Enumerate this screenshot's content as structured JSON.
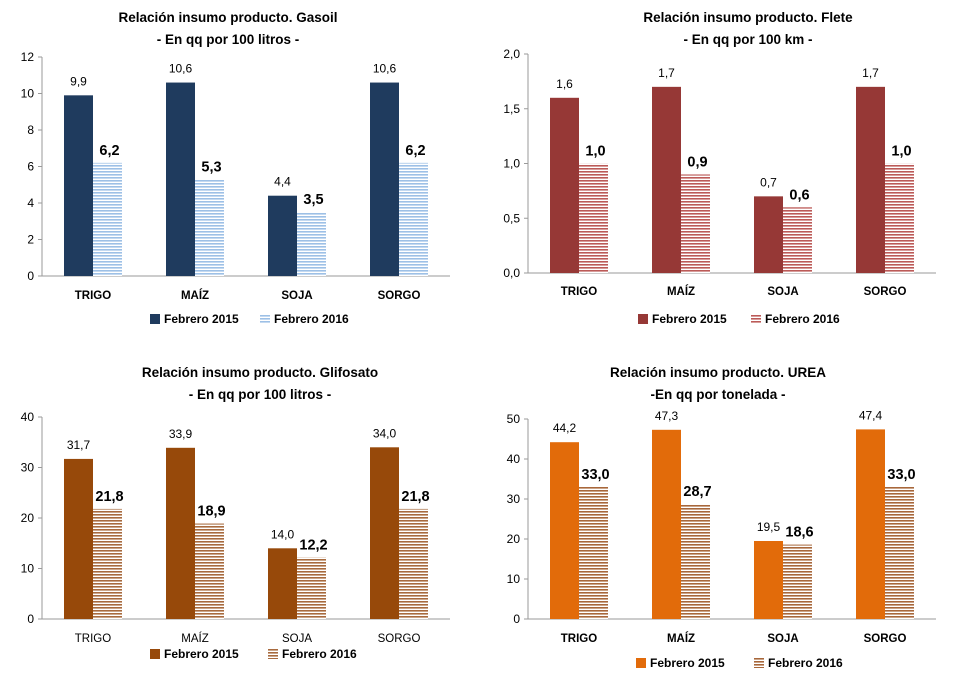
{
  "chart_data": [
    {
      "type": "bar",
      "title": "Relación insumo producto. Gasoil",
      "subtitle": "- En qq por 100 litros -",
      "categories": [
        "TRIGO",
        "MAÍZ",
        "SOJA",
        "SORGO"
      ],
      "series": [
        {
          "name": "Febrero 2015",
          "values": [
            9.9,
            10.6,
            4.4,
            10.6
          ],
          "labels": [
            "9,9",
            "10,6",
            "4,4",
            "10,6"
          ],
          "color": "#1f3b5e"
        },
        {
          "name": "Febrero 2016",
          "values": [
            6.2,
            5.3,
            3.5,
            6.2
          ],
          "labels": [
            "6,2",
            "5,3",
            "3,5",
            "6,2"
          ],
          "color": "#9dc0e6",
          "pattern": "horizontal-stripes"
        }
      ],
      "ylim": [
        0,
        12
      ],
      "yticks": [
        "0",
        "2",
        "4",
        "6",
        "8",
        "10",
        "12"
      ],
      "yticks_values": [
        0,
        2,
        4,
        6,
        8,
        10,
        12
      ],
      "legend_position": "bottom",
      "grid": false,
      "bold_categories": true
    },
    {
      "type": "bar",
      "title": "Relación insumo producto. Flete",
      "subtitle": "- En qq por 100 km -",
      "categories": [
        "TRIGO",
        "MAÍZ",
        "SOJA",
        "SORGO"
      ],
      "series": [
        {
          "name": "Febrero 2015",
          "values": [
            1.6,
            1.7,
            0.7,
            1.7
          ],
          "labels": [
            "1,6",
            "1,7",
            "0,7",
            "1,7"
          ],
          "color": "#963836"
        },
        {
          "name": "Febrero 2016",
          "values": [
            1.0,
            0.9,
            0.6,
            1.0
          ],
          "labels": [
            "1,0",
            "0,9",
            "0,6",
            "1,0"
          ],
          "color": "#bc5a58",
          "pattern": "horizontal-stripes"
        }
      ],
      "ylim": [
        0,
        2
      ],
      "yticks": [
        "0,0",
        "0,5",
        "1,0",
        "1,5",
        "2,0"
      ],
      "yticks_values": [
        0,
        0.5,
        1,
        1.5,
        2
      ],
      "legend_position": "bottom",
      "grid": false,
      "bold_categories": true
    },
    {
      "type": "bar",
      "title": "Relación insumo producto. Glifosato",
      "subtitle": "- En qq por 100 litros -",
      "categories": [
        "TRIGO",
        "MAÍZ",
        "SOJA",
        "SORGO"
      ],
      "series": [
        {
          "name": "Febrero 2015",
          "values": [
            31.7,
            33.9,
            14.0,
            34.0
          ],
          "labels": [
            "31,7",
            "33,9",
            "14,0",
            "34,0"
          ],
          "color": "#97490a"
        },
        {
          "name": "Febrero 2016",
          "values": [
            21.8,
            18.9,
            12.2,
            21.8
          ],
          "labels": [
            "21,8",
            "18,9",
            "12,2",
            "21,8"
          ],
          "color": "#a86a3e",
          "pattern": "horizontal-stripes"
        }
      ],
      "ylim": [
        0,
        40
      ],
      "yticks": [
        "0",
        "10",
        "20",
        "30",
        "40"
      ],
      "yticks_values": [
        0,
        10,
        20,
        30,
        40
      ],
      "legend_position": "bottom",
      "grid": false,
      "bold_categories": false
    },
    {
      "type": "bar",
      "title": "Relación insumo producto. UREA",
      "subtitle": "-En qq por tonelada -",
      "categories": [
        "TRIGO",
        "MAÍZ",
        "SOJA",
        "SORGO"
      ],
      "series": [
        {
          "name": "Febrero 2015",
          "values": [
            44.2,
            47.3,
            19.5,
            47.4
          ],
          "labels": [
            "44,2",
            "47,3",
            "19,5",
            "47,4"
          ],
          "color": "#e26b0a"
        },
        {
          "name": "Febrero 2016",
          "values": [
            33.0,
            28.7,
            18.6,
            33.0
          ],
          "labels": [
            "33,0",
            "28,7",
            "18,6",
            "33,0"
          ],
          "color": "#a8673b",
          "pattern": "horizontal-stripes"
        }
      ],
      "ylim": [
        0,
        50
      ],
      "yticks": [
        "0",
        "10",
        "20",
        "30",
        "40",
        "50"
      ],
      "yticks_values": [
        0,
        10,
        20,
        30,
        40,
        50
      ],
      "legend_position": "bottom",
      "grid": false,
      "bold_categories": true
    }
  ]
}
